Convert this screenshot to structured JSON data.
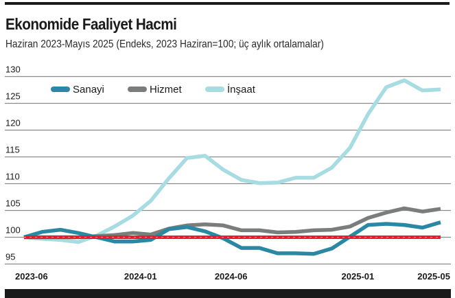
{
  "header": {
    "title": "Ekonomide Faaliyet Hacmi",
    "subtitle": "Haziran 2023-Mayıs 2025 (Endeks, 2023 Haziran=100; üç aylık ortalamalar)"
  },
  "colors": {
    "sanayi": "#2b88a4",
    "hizmet": "#7b7c7e",
    "insaat": "#a6dce2",
    "reference": "#e0202f",
    "grid": "#8a8a8a",
    "text": "#1a1a1a"
  },
  "chart_data": {
    "type": "line",
    "title": "Ekonomide Faaliyet Hacmi",
    "subtitle": "Haziran 2023-Mayıs 2025 (Endeks, 2023 Haziran=100; üç aylık ortalamalar)",
    "xlabel": "",
    "ylabel": "",
    "ylim": [
      95,
      130
    ],
    "yticks": [
      95,
      100,
      105,
      110,
      115,
      120,
      125,
      130
    ],
    "xtick_labels": [
      "2023-06",
      "2024-01",
      "2024-06",
      "2025-01",
      "2025-05"
    ],
    "xtick_indices": [
      0,
      7,
      12,
      19,
      23
    ],
    "grid": true,
    "legend_position": "top-left",
    "reference_line": {
      "value": 100,
      "style": "dashed",
      "color": "#e0202f"
    },
    "x": [
      "2023-06",
      "2023-07",
      "2023-08",
      "2023-09",
      "2023-10",
      "2023-11",
      "2023-12",
      "2024-01",
      "2024-02",
      "2024-03",
      "2024-04",
      "2024-05",
      "2024-06",
      "2024-07",
      "2024-08",
      "2024-09",
      "2024-10",
      "2024-11",
      "2024-12",
      "2025-01",
      "2025-02",
      "2025-03",
      "2025-04",
      "2025-05"
    ],
    "series": [
      {
        "name": "Sanayi",
        "color": "#2b88a4",
        "values": [
          100.0,
          101.0,
          101.4,
          100.8,
          100.0,
          99.2,
          99.2,
          99.5,
          101.5,
          101.9,
          101.1,
          99.8,
          98.0,
          98.0,
          97.0,
          97.0,
          96.9,
          97.9,
          100.1,
          102.3,
          102.5,
          102.3,
          101.8,
          102.8
        ]
      },
      {
        "name": "Hizmet",
        "color": "#7b7c7e",
        "values": [
          100.0,
          100.0,
          100.0,
          100.0,
          100.2,
          100.4,
          100.8,
          100.5,
          101.6,
          102.2,
          102.4,
          102.2,
          101.3,
          101.3,
          100.9,
          101.0,
          101.3,
          101.4,
          102.0,
          103.6,
          104.6,
          105.4,
          104.8,
          105.3
        ]
      },
      {
        "name": "İnşaat",
        "color": "#a6dce2",
        "values": [
          100.0,
          99.7,
          99.5,
          99.1,
          100.3,
          102.0,
          104.0,
          106.8,
          111.0,
          114.8,
          115.2,
          112.6,
          110.7,
          110.1,
          110.2,
          111.1,
          111.1,
          113.0,
          116.7,
          123.0,
          128.0,
          129.3,
          127.4,
          127.6
        ]
      }
    ]
  },
  "legend": [
    {
      "label": "Sanayi",
      "color": "#2b88a4"
    },
    {
      "label": "Hizmet",
      "color": "#7b7c7e"
    },
    {
      "label": "İnşaat",
      "color": "#a6dce2"
    }
  ]
}
